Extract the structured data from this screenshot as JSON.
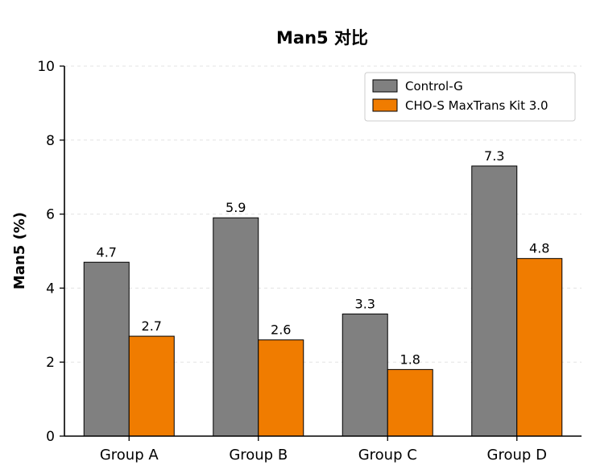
{
  "chart_data": {
    "type": "bar",
    "title": "Man5 对比",
    "xlabel": "",
    "ylabel": "Man5 (%)",
    "ylim": [
      0,
      10
    ],
    "yticks": [
      0,
      2,
      4,
      6,
      8,
      10
    ],
    "grid": true,
    "legend_position": "top-right",
    "categories": [
      "Group A",
      "Group B",
      "Group C",
      "Group D"
    ],
    "series": [
      {
        "name": "Control-G",
        "color": "#808080",
        "values": [
          4.7,
          5.9,
          3.3,
          7.3
        ],
        "labels": [
          "4.7",
          "5.9",
          "3.3",
          "7.3"
        ]
      },
      {
        "name": "CHO-S MaxTrans Kit 3.0",
        "color": "#f07c00",
        "values": [
          2.7,
          2.6,
          1.8,
          4.8
        ],
        "labels": [
          "2.7",
          "2.6",
          "1.8",
          "4.8"
        ]
      }
    ]
  }
}
